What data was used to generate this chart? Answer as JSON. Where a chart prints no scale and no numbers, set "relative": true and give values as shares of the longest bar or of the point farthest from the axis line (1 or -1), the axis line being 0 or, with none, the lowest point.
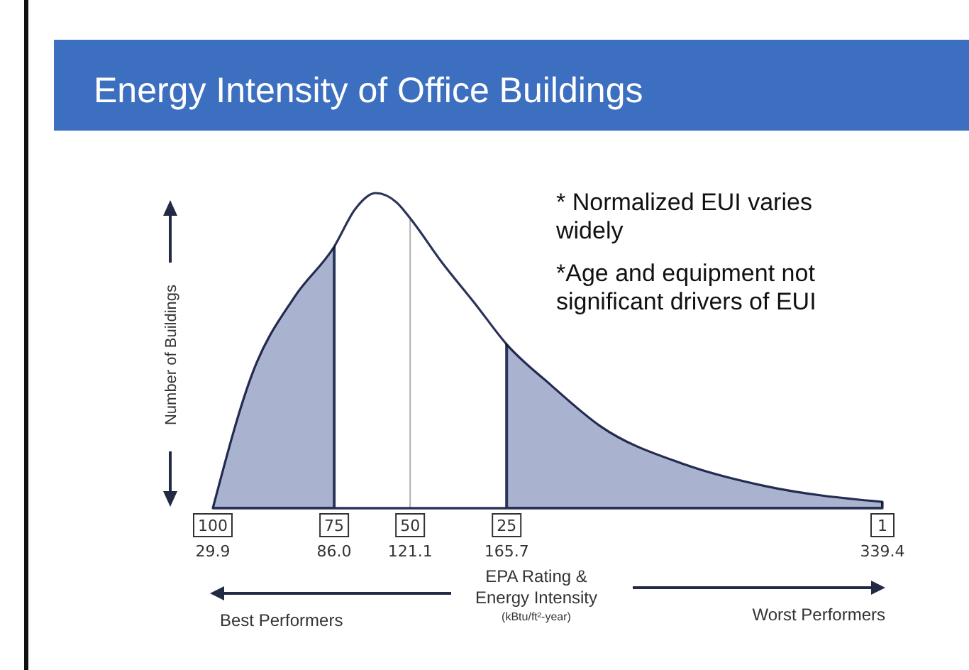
{
  "chart_data": {
    "type": "area",
    "title": "Energy Intensity of Office Buildings",
    "xlabel": "EPA Rating & Energy Intensity (kBtu/ft²-year)",
    "ylabel": "Number of Buildings",
    "relative": true,
    "x": [
      29.9,
      48.3,
      67.6,
      86.0,
      95.8,
      105.1,
      114.9,
      121.1,
      135.8,
      151.0,
      165.7,
      186.3,
      209.1,
      247.5,
      285.3,
      339.4
    ],
    "series": [
      {
        "color": "#2a3358",
        "values": [
          0,
          0.43,
          0.67,
          0.83,
          0.95,
          1.0,
          0.97,
          0.92,
          0.78,
          0.65,
          0.52,
          0.39,
          0.26,
          0.14,
          0.07,
          0.02
        ]
      }
    ],
    "xlim": [
      29.9,
      339.4
    ],
    "xticks": [
      29.9,
      {
        "value": 86.0,
        "label": "86.0"
      },
      121.1,
      165.7,
      339.4
    ],
    "bands": [
      {
        "axis": "x",
        "from": 29.9,
        "to": 86.0,
        "color": "#a9b3cf"
      },
      {
        "axis": "x",
        "from": 165.7,
        "to": 339.4,
        "color": "#a9b3cf"
      }
    ],
    "ref_lines": [
      {
        "axis": "x",
        "value": 121.1,
        "color": "#b0b0b0"
      }
    ],
    "annotations": [
      "* Normalized EUI varies widely",
      "*Age and equipment not significant drivers of EUI",
      "Best Performers",
      "Worst Performers",
      "100",
      "75",
      "50",
      "25",
      "1"
    ]
  }
}
